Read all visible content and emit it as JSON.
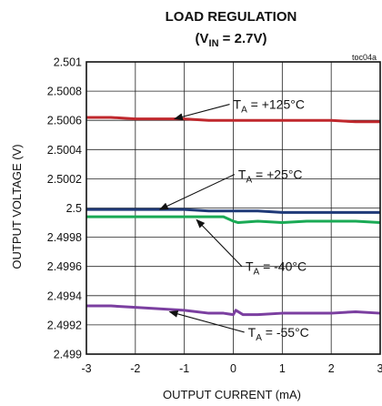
{
  "chart_data": {
    "type": "line",
    "title": "LOAD REGULATION",
    "subtitle": {
      "prefix": "(V",
      "sub": "IN",
      "suffix": " = 2.7V)"
    },
    "tag": "toc04a",
    "xlabel": "OUTPUT CURRENT (mA)",
    "ylabel": "OUTPUT  VOLTAGE (V)",
    "xlim": [
      -3,
      3
    ],
    "ylim": [
      2.499,
      2.501
    ],
    "x_ticks": [
      -3,
      -2,
      -1,
      0,
      1,
      2,
      3
    ],
    "x_tick_labels": [
      "-3",
      "-2",
      "-1",
      "0",
      "1",
      "2",
      "3"
    ],
    "y_ticks": [
      2.499,
      2.4992,
      2.4994,
      2.4996,
      2.4998,
      2.5,
      2.5002,
      2.5004,
      2.5006,
      2.5008,
      2.501
    ],
    "y_tick_labels": [
      "2.499",
      "2.4992",
      "2.4994",
      "2.4996",
      "2.4998",
      "2.5",
      "2.5002",
      "2.5004",
      "2.5006",
      "2.5008",
      "2.501"
    ],
    "grid": true,
    "series": [
      {
        "color": "#c0282d",
        "x": [
          -3,
          -2.5,
          -2,
          -1.5,
          -1,
          -0.5,
          0,
          0.5,
          1,
          1.5,
          2,
          2.5,
          3
        ],
        "y": [
          2.50062,
          2.50062,
          2.50061,
          2.50061,
          2.50061,
          2.5006,
          2.5006,
          2.5006,
          2.5006,
          2.5006,
          2.5006,
          2.50059,
          2.50059
        ]
      },
      {
        "color": "#1f3a78",
        "x": [
          -3,
          -2.5,
          -2,
          -1.5,
          -1,
          -0.5,
          0,
          0.5,
          1,
          1.5,
          2,
          2.5,
          3
        ],
        "y": [
          2.49999,
          2.49999,
          2.49999,
          2.49999,
          2.49999,
          2.49998,
          2.49998,
          2.49998,
          2.49997,
          2.49997,
          2.49997,
          2.49997,
          2.49997
        ]
      },
      {
        "color": "#1aaa55",
        "x": [
          -3,
          -2.5,
          -2,
          -1.5,
          -1,
          -0.5,
          -0.2,
          0,
          0.1,
          0.5,
          1,
          1.5,
          2,
          2.5,
          3
        ],
        "y": [
          2.49994,
          2.49994,
          2.49994,
          2.49994,
          2.49994,
          2.49994,
          2.49994,
          2.49991,
          2.4999,
          2.49991,
          2.4999,
          2.49991,
          2.49991,
          2.49991,
          2.4999
        ]
      },
      {
        "color": "#7b3fa0",
        "x": [
          -3,
          -2.5,
          -2,
          -1.5,
          -1,
          -0.5,
          -0.2,
          0,
          0.05,
          0.2,
          0.5,
          1,
          1.5,
          2,
          2.5,
          3
        ],
        "y": [
          2.49933,
          2.49933,
          2.49932,
          2.49931,
          2.4993,
          2.49928,
          2.49928,
          2.49927,
          2.4993,
          2.49927,
          2.49927,
          2.49928,
          2.49928,
          2.49928,
          2.49929,
          2.49928
        ]
      }
    ],
    "annotations": [
      {
        "pre": "T",
        "sub": "A",
        "post": " = +125°C",
        "text_x": 0,
        "text_y": 2.50071,
        "arrow_to_x": -1.2,
        "arrow_to_y": 2.50061
      },
      {
        "pre": "T",
        "sub": "A",
        "post": " = +25°C",
        "text_x": 0.1,
        "text_y": 2.50023,
        "arrow_to_x": -1.5,
        "arrow_to_y": 2.49999
      },
      {
        "pre": "T",
        "sub": "A",
        "post": " = -40°C",
        "text_x": 0.25,
        "text_y": 2.4996,
        "arrow_to_x": -0.75,
        "arrow_to_y": 2.49992
      },
      {
        "pre": "T",
        "sub": "A",
        "post": " = -55°C",
        "text_x": 0.3,
        "text_y": 2.49915,
        "arrow_to_x": -1.3,
        "arrow_to_y": 2.49929
      }
    ]
  }
}
